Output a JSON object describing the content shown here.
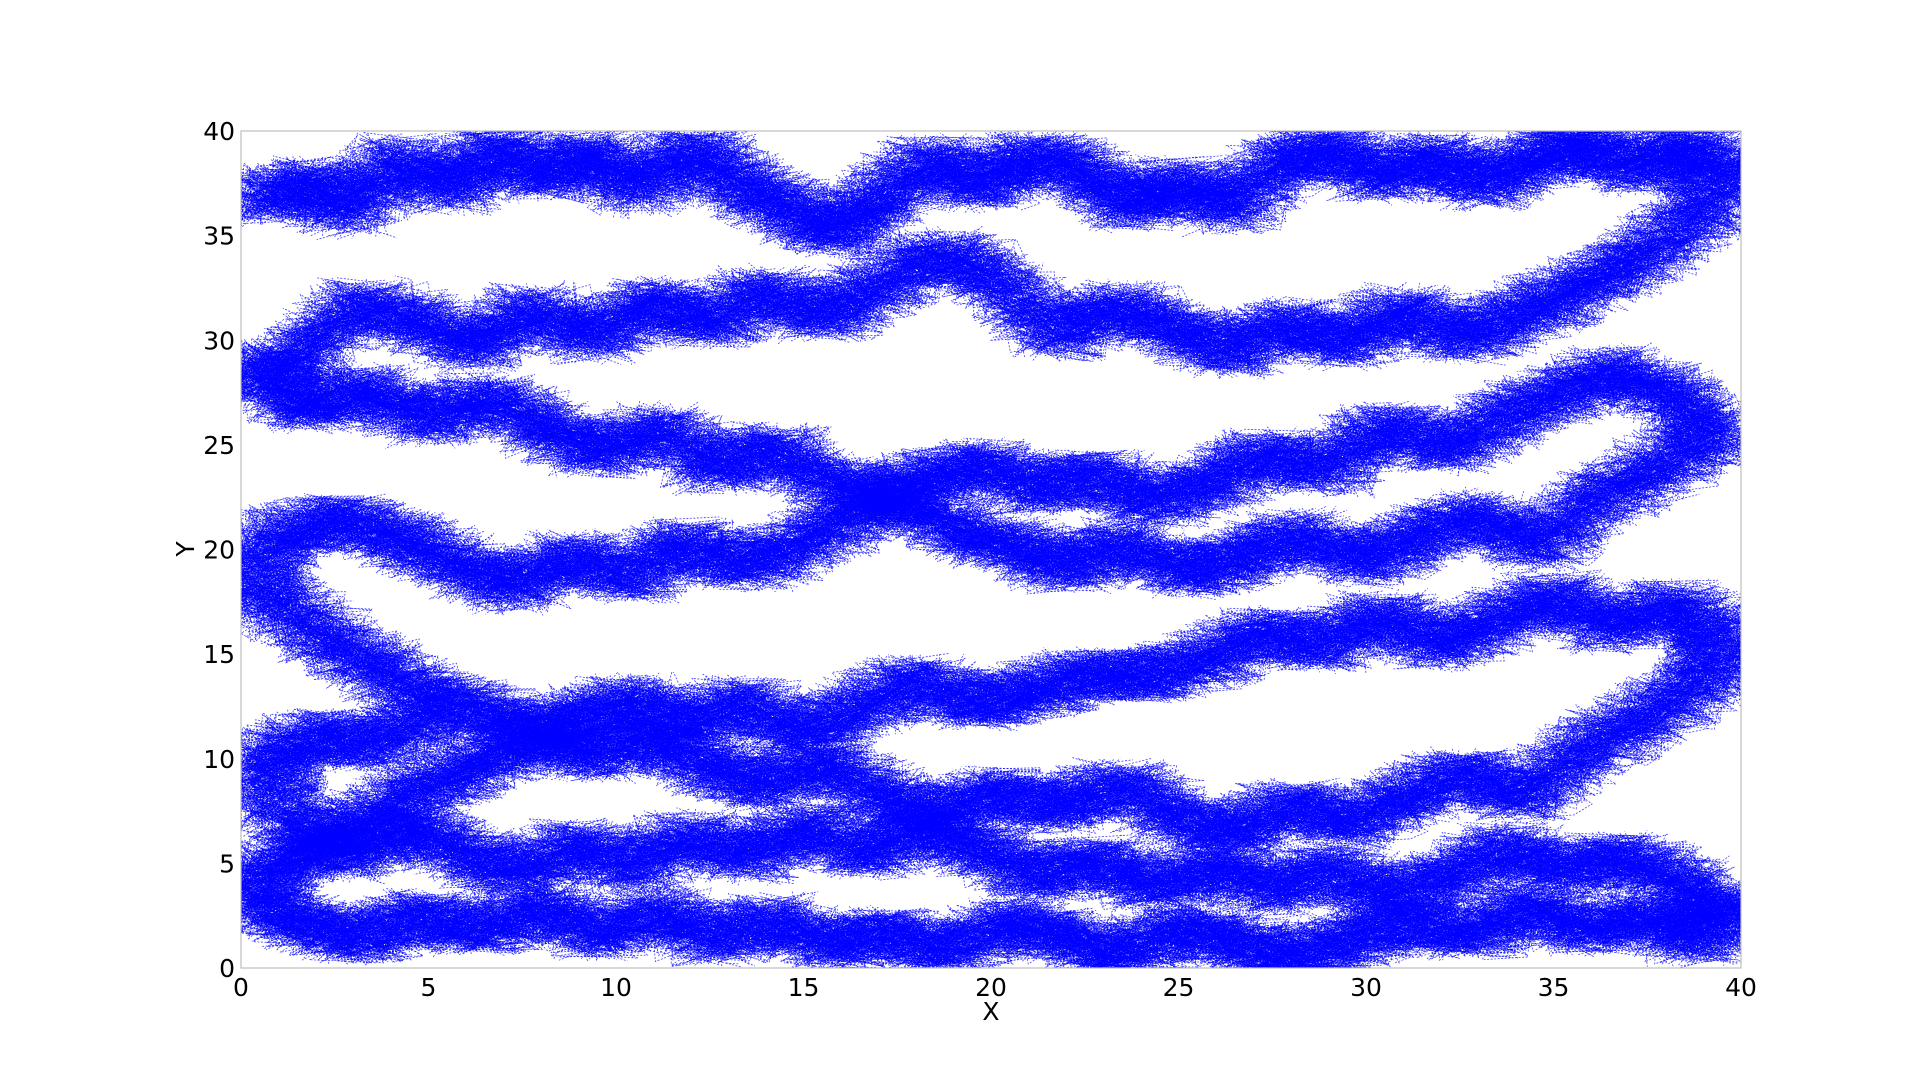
{
  "chart_data": {
    "type": "line",
    "title": "",
    "xlabel": "X",
    "ylabel": "Y",
    "xlim": [
      0,
      40
    ],
    "ylim": [
      0,
      40
    ],
    "xticks": [
      0,
      5,
      10,
      15,
      20,
      25,
      30,
      35,
      40
    ],
    "yticks": [
      0,
      5,
      10,
      15,
      20,
      25,
      30,
      35,
      40
    ],
    "x_tick_labels": [
      "0",
      "5",
      "10",
      "15",
      "20",
      "25",
      "30",
      "35",
      "40"
    ],
    "y_tick_labels": [
      "0",
      "5",
      "10",
      "15",
      "20",
      "25",
      "30",
      "35",
      "40"
    ],
    "grid": false,
    "legend": false,
    "line_style": "dashed",
    "series": [
      {
        "color": "#0000ff",
        "points": [
          [
            0.5,
            36.5
          ],
          [
            1.8,
            37.6
          ],
          [
            2.9,
            36.1
          ],
          [
            4.2,
            38.7
          ],
          [
            5.6,
            37.2
          ],
          [
            6.8,
            39.1
          ],
          [
            8.1,
            37.8
          ],
          [
            9.4,
            38.9
          ],
          [
            10.7,
            37.1
          ],
          [
            12.0,
            39.2
          ],
          [
            13.3,
            37.5
          ],
          [
            14.6,
            36.2
          ],
          [
            15.9,
            35.1
          ],
          [
            17.1,
            36.8
          ],
          [
            18.4,
            38.6
          ],
          [
            19.8,
            37.3
          ],
          [
            21.1,
            38.9
          ],
          [
            22.5,
            37.9
          ],
          [
            23.8,
            36.4
          ],
          [
            25.0,
            37.6
          ],
          [
            26.3,
            36.2
          ],
          [
            27.7,
            38.4
          ],
          [
            29.0,
            39.1
          ],
          [
            30.4,
            37.7
          ],
          [
            31.8,
            38.8
          ],
          [
            33.1,
            37.4
          ],
          [
            34.5,
            38.6
          ],
          [
            35.8,
            39.4
          ],
          [
            37.2,
            38.1
          ],
          [
            38.6,
            39.3
          ],
          [
            39.5,
            37.9
          ],
          [
            38.7,
            35.6
          ],
          [
            37.1,
            33.8
          ],
          [
            35.6,
            32.4
          ],
          [
            34.1,
            31.2
          ],
          [
            32.6,
            30.1
          ],
          [
            31.0,
            31.5
          ],
          [
            29.5,
            29.8
          ],
          [
            28.0,
            30.9
          ],
          [
            26.4,
            29.4
          ],
          [
            24.9,
            30.6
          ],
          [
            23.3,
            31.7
          ],
          [
            21.8,
            30.2
          ],
          [
            20.2,
            32.9
          ],
          [
            18.7,
            34.2
          ],
          [
            17.1,
            32.7
          ],
          [
            15.6,
            31.1
          ],
          [
            14.0,
            32.4
          ],
          [
            12.5,
            30.8
          ],
          [
            10.9,
            31.9
          ],
          [
            9.4,
            30.1
          ],
          [
            7.8,
            31.6
          ],
          [
            6.3,
            29.7
          ],
          [
            4.8,
            30.9
          ],
          [
            3.2,
            31.8
          ],
          [
            1.6,
            29.4
          ],
          [
            0.6,
            28.2
          ],
          [
            1.9,
            26.8
          ],
          [
            3.4,
            27.7
          ],
          [
            5.0,
            26.1
          ],
          [
            6.5,
            27.4
          ],
          [
            8.1,
            25.8
          ],
          [
            9.6,
            24.6
          ],
          [
            11.2,
            25.9
          ],
          [
            12.7,
            23.8
          ],
          [
            14.3,
            24.9
          ],
          [
            15.8,
            23.2
          ],
          [
            17.4,
            22.4
          ],
          [
            19.0,
            21.1
          ],
          [
            20.5,
            20.2
          ],
          [
            22.1,
            19.1
          ],
          [
            23.6,
            20.4
          ],
          [
            25.2,
            18.9
          ],
          [
            26.7,
            19.6
          ],
          [
            28.3,
            20.8
          ],
          [
            29.9,
            19.4
          ],
          [
            31.4,
            20.6
          ],
          [
            33.0,
            21.7
          ],
          [
            34.5,
            20.1
          ],
          [
            36.1,
            22.3
          ],
          [
            37.6,
            23.8
          ],
          [
            39.2,
            25.4
          ],
          [
            38.3,
            27.2
          ],
          [
            36.7,
            28.6
          ],
          [
            35.2,
            27.4
          ],
          [
            33.6,
            26.2
          ],
          [
            32.1,
            24.8
          ],
          [
            30.5,
            25.9
          ],
          [
            29.0,
            23.7
          ],
          [
            27.4,
            24.6
          ],
          [
            25.9,
            23.1
          ],
          [
            24.3,
            22.2
          ],
          [
            22.8,
            23.6
          ],
          [
            21.2,
            22.8
          ],
          [
            19.7,
            24.1
          ],
          [
            18.1,
            23.3
          ],
          [
            16.6,
            21.8
          ],
          [
            15.0,
            20.4
          ],
          [
            13.5,
            19.2
          ],
          [
            11.9,
            20.3
          ],
          [
            10.4,
            18.6
          ],
          [
            8.8,
            19.7
          ],
          [
            7.3,
            18.1
          ],
          [
            5.7,
            19.3
          ],
          [
            4.2,
            20.6
          ],
          [
            2.6,
            21.4
          ],
          [
            1.1,
            20.8
          ],
          [
            0.4,
            18.3
          ],
          [
            1.7,
            16.4
          ],
          [
            3.2,
            14.8
          ],
          [
            4.8,
            13.1
          ],
          [
            6.3,
            12.2
          ],
          [
            7.9,
            11.4
          ],
          [
            9.4,
            10.1
          ],
          [
            11.0,
            10.9
          ],
          [
            12.5,
            9.6
          ],
          [
            14.1,
            8.7
          ],
          [
            15.6,
            9.8
          ],
          [
            17.2,
            8.1
          ],
          [
            18.7,
            7.3
          ],
          [
            20.3,
            8.4
          ],
          [
            21.8,
            7.6
          ],
          [
            23.4,
            8.8
          ],
          [
            24.9,
            7.2
          ],
          [
            26.5,
            6.4
          ],
          [
            28.0,
            7.8
          ],
          [
            29.6,
            6.9
          ],
          [
            31.1,
            8.2
          ],
          [
            32.7,
            9.3
          ],
          [
            34.2,
            8.1
          ],
          [
            35.8,
            10.4
          ],
          [
            37.3,
            11.8
          ],
          [
            38.9,
            13.6
          ],
          [
            39.4,
            15.8
          ],
          [
            38.2,
            17.4
          ],
          [
            36.6,
            16.2
          ],
          [
            35.1,
            17.8
          ],
          [
            33.5,
            16.6
          ],
          [
            32.0,
            15.4
          ],
          [
            30.4,
            16.9
          ],
          [
            28.9,
            15.3
          ],
          [
            27.3,
            16.1
          ],
          [
            25.8,
            14.7
          ],
          [
            24.2,
            13.9
          ],
          [
            22.7,
            14.1
          ],
          [
            21.1,
            13.2
          ],
          [
            19.6,
            12.6
          ],
          [
            18.0,
            13.8
          ],
          [
            16.5,
            12.4
          ],
          [
            14.9,
            11.2
          ],
          [
            13.4,
            12.8
          ],
          [
            11.8,
            11.6
          ],
          [
            10.3,
            12.9
          ],
          [
            8.7,
            11.8
          ],
          [
            7.2,
            10.4
          ],
          [
            5.6,
            9.2
          ],
          [
            4.1,
            7.8
          ],
          [
            2.5,
            6.3
          ],
          [
            1.0,
            5.1
          ],
          [
            0.5,
            3.2
          ],
          [
            1.8,
            2.1
          ],
          [
            3.3,
            1.4
          ],
          [
            4.9,
            2.6
          ],
          [
            6.4,
            1.8
          ],
          [
            8.0,
            2.9
          ],
          [
            9.5,
            1.6
          ],
          [
            11.1,
            2.8
          ],
          [
            12.6,
            1.3
          ],
          [
            14.2,
            2.4
          ],
          [
            15.7,
            1.1
          ],
          [
            17.3,
            1.7
          ],
          [
            18.8,
            0.9
          ],
          [
            20.4,
            2.2
          ],
          [
            21.9,
            1.5
          ],
          [
            23.5,
            0.8
          ],
          [
            25.0,
            1.9
          ],
          [
            26.6,
            1.2
          ],
          [
            28.1,
            0.7
          ],
          [
            29.7,
            1.4
          ],
          [
            31.2,
            2.3
          ],
          [
            32.8,
            1.6
          ],
          [
            34.3,
            2.9
          ],
          [
            35.9,
            1.8
          ],
          [
            37.4,
            2.6
          ],
          [
            38.8,
            1.3
          ],
          [
            39.6,
            2.7
          ],
          [
            38.4,
            4.1
          ],
          [
            36.8,
            5.3
          ],
          [
            35.3,
            4.6
          ],
          [
            33.7,
            5.8
          ],
          [
            32.2,
            4.2
          ],
          [
            30.6,
            3.4
          ],
          [
            29.1,
            4.8
          ],
          [
            27.5,
            3.6
          ],
          [
            26.0,
            4.9
          ],
          [
            24.4,
            3.8
          ],
          [
            22.9,
            5.1
          ],
          [
            21.3,
            4.3
          ],
          [
            19.8,
            5.6
          ],
          [
            18.2,
            6.7
          ],
          [
            16.7,
            5.4
          ],
          [
            15.1,
            6.8
          ],
          [
            13.6,
            5.2
          ],
          [
            12.0,
            6.4
          ],
          [
            10.5,
            4.7
          ],
          [
            8.9,
            5.9
          ],
          [
            7.4,
            4.4
          ],
          [
            5.8,
            5.7
          ],
          [
            4.3,
            6.6
          ],
          [
            2.7,
            5.3
          ],
          [
            1.2,
            7.4
          ],
          [
            0.7,
            9.8
          ],
          [
            2.1,
            11.2
          ],
          [
            3.6,
            10.6
          ],
          [
            5.2,
            11.9
          ]
        ]
      }
    ]
  }
}
